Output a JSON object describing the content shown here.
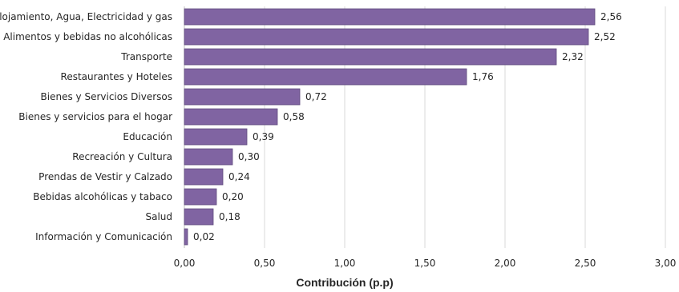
{
  "chart_data": {
    "type": "bar",
    "orientation": "horizontal",
    "categories": [
      "Alojamiento, Agua, Electricidad y gas",
      "Alimentos y bebidas no alcohólicas",
      "Transporte",
      "Restaurantes y Hoteles",
      "Bienes y Servicios Diversos",
      "Bienes y servicios para el hogar",
      "Educación",
      "Recreación y Cultura",
      "Prendas de Vestir y Calzado",
      "Bebidas alcohólicas y tabaco",
      "Salud",
      "Información y Comunicación"
    ],
    "values": [
      2.56,
      2.52,
      2.32,
      1.76,
      0.72,
      0.58,
      0.39,
      0.3,
      0.24,
      0.2,
      0.18,
      0.02
    ],
    "value_labels": [
      "2,56",
      "2,52",
      "2,32",
      "1,76",
      "0,72",
      "0,58",
      "0,39",
      "0,30",
      "0,24",
      "0,20",
      "0,18",
      "0,02"
    ],
    "xlabel": "Contribución (p.p)",
    "ylabel": "",
    "title": "",
    "xlim": [
      0,
      3
    ],
    "ticks": [
      0,
      0.5,
      1,
      1.5,
      2,
      2.5,
      3
    ],
    "tick_labels": [
      "0,00",
      "0,50",
      "1,00",
      "1,50",
      "2,00",
      "2,50",
      "3,00"
    ],
    "grid": "vertical",
    "legend": "none",
    "bar_color": "#8064a2",
    "bar_border_color": "#5f4a7e"
  }
}
